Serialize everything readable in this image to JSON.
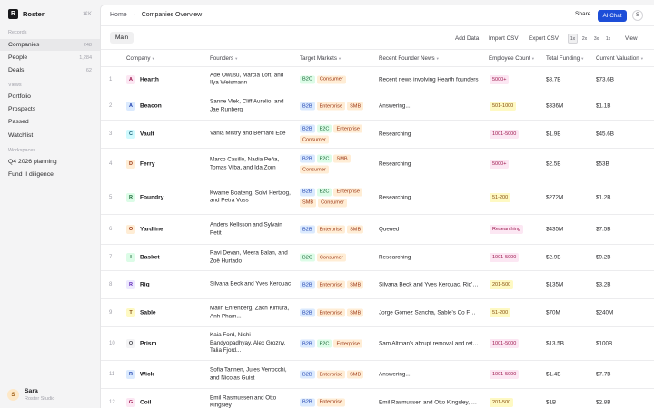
{
  "sidebar": {
    "workspace": "Roster",
    "logo_letter": "R",
    "shortcut": "⌘K",
    "records_label": "Records",
    "records": [
      {
        "label": "Companies",
        "count": "248",
        "active": true
      },
      {
        "label": "People",
        "count": "1,284",
        "active": false
      },
      {
        "label": "Deals",
        "count": "62",
        "active": false
      }
    ],
    "views_label": "Views",
    "views": [
      {
        "label": "Portfolio"
      },
      {
        "label": "Prospects"
      },
      {
        "label": "Passed"
      },
      {
        "label": "Watchlist"
      }
    ],
    "workspaces_label": "Workspaces",
    "workspaces": [
      {
        "label": "Q4 2026 planning"
      },
      {
        "label": "Fund II diligence"
      }
    ],
    "user": {
      "initial": "S",
      "name": "Sara",
      "org": "Roster Studio"
    }
  },
  "header": {
    "breadcrumb_home": "Home",
    "breadcrumb_sep": "›",
    "breadcrumb_current": "Companies Overview",
    "share_label": "Share",
    "ai_chat_label": "AI Chat",
    "avatar_initial": "S"
  },
  "toolbar": {
    "tab_main": "Main",
    "add_data": "Add Data",
    "import_csv": "Import CSV",
    "export_csv": "Export CSV",
    "density": [
      "1x",
      "2x",
      "3x",
      "1x"
    ],
    "view": "View"
  },
  "columns": [
    "Company",
    "Founders",
    "Target Markets",
    "Recent Founder News",
    "Employee Count",
    "Total Funding",
    "Current Valuation"
  ],
  "sort_glyph": "▾",
  "tag_colors": {
    "B2B": {
      "bg": "#dbeafe",
      "fg": "#1e40af"
    },
    "B2C": {
      "bg": "#dcfce7",
      "fg": "#166534"
    },
    "Consumer": {
      "bg": "#ffedd5",
      "fg": "#9a3412"
    },
    "Enterprise": {
      "bg": "#ffedd5",
      "fg": "#9a3412"
    },
    "SMB": {
      "bg": "#ffedd5",
      "fg": "#9a3412"
    }
  },
  "badge_colors": {
    "5000+": {
      "bg": "#fce7f3",
      "fg": "#9d174d"
    },
    "501-1000": {
      "bg": "#fef9c3",
      "fg": "#854d0e"
    },
    "1001-5000": {
      "bg": "#fce7f3",
      "fg": "#9d174d"
    },
    "51-200": {
      "bg": "#fef9c3",
      "fg": "#854d0e"
    },
    "Researching": {
      "bg": "#fce7f3",
      "fg": "#9d174d"
    },
    "201-500": {
      "bg": "#fef9c3",
      "fg": "#854d0e"
    }
  },
  "avatar_colors": {
    "pink": {
      "bg": "#fce7f3",
      "fg": "#9d174d"
    },
    "blue": {
      "bg": "#dbeafe",
      "fg": "#1e40af"
    },
    "cyan": {
      "bg": "#cffafe",
      "fg": "#155e75"
    },
    "orange": {
      "bg": "#ffedd5",
      "fg": "#9a3412"
    },
    "green": {
      "bg": "#dcfce7",
      "fg": "#166534"
    },
    "purple": {
      "bg": "#ede9fe",
      "fg": "#5b21b6"
    },
    "yellow": {
      "bg": "#fef9c3",
      "fg": "#854d0e"
    },
    "gray": {
      "bg": "#f4f4f5",
      "fg": "#3f3f46"
    }
  },
  "rows": [
    {
      "idx": "1",
      "initial": "A",
      "color": "pink",
      "company": "Hearth",
      "founders": "Adé Owusu, Marcia Loft, and Ilya Weismann",
      "markets": [
        "B2C",
        "Consumer"
      ],
      "news": "Recent news involving Hearth founders",
      "employees": "5000+",
      "funding": "$8.7B",
      "valuation": "$73.6B"
    },
    {
      "idx": "2",
      "initial": "A",
      "color": "blue",
      "company": "Beacon",
      "founders": "Sanne Vlek, Cliff Aurelio, and Jae Runberg",
      "markets": [
        "B2B",
        "Enterprise",
        "SMB"
      ],
      "news": "Answering...",
      "employees": "501-1000",
      "funding": "$336M",
      "valuation": "$1.1B"
    },
    {
      "idx": "3",
      "initial": "C",
      "color": "cyan",
      "company": "Vault",
      "founders": "Vania Mistry and Bernard Ede",
      "markets": [
        "B2B",
        "B2C",
        "Enterprise",
        "Consumer"
      ],
      "news": "Researching",
      "employees": "1001-5000",
      "funding": "$1.9B",
      "valuation": "$45.6B"
    },
    {
      "idx": "4",
      "initial": "D",
      "color": "orange",
      "company": "Ferry",
      "founders": "Marco Casillo, Nadia Peña, Tomas Vrba, and Ida Zorn",
      "markets": [
        "B2B",
        "B2C",
        "SMB",
        "Consumer"
      ],
      "news": "Researching",
      "employees": "5000+",
      "funding": "$2.5B",
      "valuation": "$53B"
    },
    {
      "idx": "5",
      "initial": "R",
      "color": "green",
      "company": "Foundry",
      "founders": "Kwame Boateng, Solvi Hertzog, and Petra Voss",
      "markets": [
        "B2B",
        "B2C",
        "Enterprise",
        "SMB",
        "Consumer"
      ],
      "news": "Researching",
      "employees": "51-200",
      "funding": "$272M",
      "valuation": "$1.2B"
    },
    {
      "idx": "6",
      "initial": "O",
      "color": "orange",
      "company": "Yardline",
      "founders": "Anders Kellsson and Sylvain Petit",
      "markets": [
        "B2B",
        "Enterprise",
        "SMB"
      ],
      "news": "Queued",
      "employees": "Researching",
      "funding": "$435M",
      "valuation": "$7.5B"
    },
    {
      "idx": "7",
      "initial": "I",
      "color": "green",
      "company": "Basket",
      "founders": "Ravi Devan, Meera Balan, and Zoë Hurtado",
      "markets": [
        "B2C",
        "Consumer"
      ],
      "news": "Researching",
      "employees": "1001-5000",
      "funding": "$2.9B",
      "valuation": "$9.2B"
    },
    {
      "idx": "8",
      "initial": "R",
      "color": "purple",
      "company": "Rig",
      "founders": "Silvana Beck and Yves Kerouac",
      "markets": [
        "B2B",
        "Enterprise",
        "SMB"
      ],
      "news": "Silvana Beck and Yves Kerouac, Rig's founders",
      "employees": "201-500",
      "funding": "$135M",
      "valuation": "$3.2B"
    },
    {
      "idx": "9",
      "initial": "T",
      "color": "yellow",
      "company": "Sable",
      "founders": "Malin Ehrenberg, Zach Kimura, Anh Pham...",
      "markets": [
        "B2B",
        "Enterprise",
        "SMB"
      ],
      "news": "Jorge Gómez Sancha, Sable's Co Founder",
      "employees": "51-200",
      "funding": "$70M",
      "valuation": "$240M"
    },
    {
      "idx": "10",
      "initial": "O",
      "color": "gray",
      "company": "Prism",
      "founders": "Kaia Ford, Nishi Bandyopadhyay, Alex Grozny, Talia Fjord...",
      "markets": [
        "B2B",
        "B2C",
        "Enterprise"
      ],
      "news": "Sam Altman's abrupt removal and return",
      "employees": "1001-5000",
      "funding": "$13.5B",
      "valuation": "$100B"
    },
    {
      "idx": "11",
      "initial": "R",
      "color": "blue",
      "company": "Wick",
      "founders": "Sofia Tannen, Jules Verrocchi, and Nicolas Guist",
      "markets": [
        "B2B",
        "Enterprise",
        "SMB"
      ],
      "news": "Answering...",
      "employees": "1001-5000",
      "funding": "$1.4B",
      "valuation": "$7.7B"
    },
    {
      "idx": "12",
      "initial": "G",
      "color": "pink",
      "company": "Coil",
      "founders": "Emil Rasmussen and Otto Kingsley",
      "markets": [
        "B2B",
        "Enterprise"
      ],
      "news": "Emil Rasmussen and Otto Kingsley, Coil's founders",
      "employees": "201-500",
      "funding": "$1B",
      "valuation": "$2.8B"
    }
  ]
}
